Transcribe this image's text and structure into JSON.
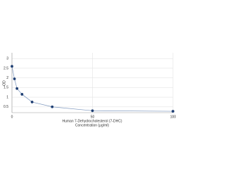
{
  "chart_data": {
    "type": "line",
    "x_label": "Human 7-Dehydrocholesterol (7-DHC)",
    "x_label_2": "Concentration (μg/ml)",
    "y_label": "OD",
    "x": [
      0,
      1.56,
      3.125,
      6.25,
      12.5,
      25,
      50,
      100
    ],
    "series": [
      {
        "color": "#1f3f73",
        "line_color": "#7c96bd",
        "values": [
          2.6,
          1.95,
          1.45,
          1.15,
          0.75,
          0.5,
          0.3,
          0.27
        ]
      }
    ],
    "xlim": [
      0,
      100
    ],
    "xticks": [
      0,
      50,
      100
    ],
    "ylim": [
      0.2,
      3.3
    ],
    "yticks": [
      0.5,
      1,
      1.5,
      2,
      2.5,
      3
    ],
    "grid": true
  }
}
